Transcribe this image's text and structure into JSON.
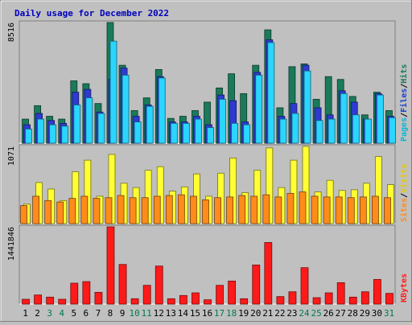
{
  "chart_data": {
    "type": "bar",
    "title": "Daily usage for December 2022",
    "categories": [
      "1",
      "2",
      "3",
      "4",
      "5",
      "6",
      "7",
      "8",
      "9",
      "10",
      "11",
      "12",
      "13",
      "14",
      "15",
      "16",
      "17",
      "18",
      "19",
      "20",
      "21",
      "22",
      "23",
      "24",
      "25",
      "26",
      "27",
      "28",
      "29",
      "30",
      "31"
    ],
    "weekend_days": [
      "3",
      "4",
      "10",
      "11",
      "17",
      "18",
      "24",
      "25",
      "31"
    ],
    "panels": [
      {
        "id": "hits",
        "y_max_label": "8516",
        "ylim": [
          0,
          8516
        ],
        "right_labels": [
          "Pages",
          "Files",
          "Hits"
        ],
        "series": [
          {
            "name": "Hits",
            "color": "#1a7a5a",
            "values": [
              1700,
              2650,
              1900,
              1700,
              4400,
              4200,
              2800,
              8516,
              5500,
              2300,
              3200,
              5200,
              1750,
              1900,
              2300,
              2900,
              3900,
              4900,
              3500,
              5500,
              8000,
              2500,
              5400,
              5600,
              3100,
              4700,
              4500,
              3300,
              2000,
              3600,
              2300
            ]
          },
          {
            "name": "Files",
            "color": "#2e3ad1",
            "values": [
              1300,
              2100,
              1600,
              1400,
              3600,
              3800,
              2200,
              4500,
              5300,
              1900,
              2700,
              4700,
              1500,
              1500,
              1900,
              1300,
              3400,
              3000,
              1500,
              5000,
              7300,
              1900,
              2800,
              5500,
              2500,
              2000,
              3700,
              2900,
              1700,
              3500,
              1900
            ]
          },
          {
            "name": "Pages",
            "color": "#2ad5ff",
            "values": [
              1000,
              1700,
              1300,
              1200,
              2700,
              3200,
              2100,
              7200,
              4800,
              1500,
              2600,
              4600,
              1400,
              1400,
              1700,
              1100,
              3100,
              1400,
              1300,
              4800,
              7100,
              1700,
              2100,
              5100,
              1600,
              1700,
              3500,
              2000,
              1700,
              3400,
              1800
            ]
          }
        ]
      },
      {
        "id": "visits",
        "y_max_label": "1071",
        "ylim": [
          0,
          1071
        ],
        "right_labels": [
          "Sites",
          "Visits"
        ],
        "series": [
          {
            "name": "Visits",
            "color": "#ffff33",
            "values": [
              270,
              570,
              480,
              320,
              720,
              880,
              380,
              960,
              560,
              500,
              740,
              790,
              450,
              510,
              690,
              380,
              700,
              910,
              430,
              740,
              1050,
              500,
              880,
              1071,
              440,
              600,
              460,
              470,
              560,
              930,
              540
            ]
          },
          {
            "name": "Sites",
            "color": "#ff8c1a",
            "values": [
              250,
              380,
              320,
              300,
              350,
              380,
              350,
              360,
              390,
              360,
              360,
              380,
              390,
              400,
              380,
              330,
              360,
              370,
              390,
              380,
              400,
              370,
              420,
              440,
              380,
              370,
              370,
              360,
              370,
              380,
              360
            ]
          }
        ]
      },
      {
        "id": "kbytes",
        "y_max_label": "1441846",
        "ylim": [
          0,
          1441846
        ],
        "right_labels": [
          "KBytes"
        ],
        "series": [
          {
            "name": "KBytes",
            "color": "#ff1a1a",
            "values": [
              90000,
              170000,
              130000,
              90000,
              390000,
              420000,
              220000,
              1441846,
              740000,
              100000,
              350000,
              710000,
              100000,
              160000,
              210000,
              80000,
              350000,
              430000,
              100000,
              730000,
              1150000,
              140000,
              230000,
              680000,
              120000,
              210000,
              400000,
              130000,
              230000,
              460000,
              200000
            ]
          }
        ]
      }
    ],
    "colors": {
      "background": "#c0c0c0",
      "plot_background": "#c0c0c0",
      "title": "#0000c0",
      "weekday_label": "#000000",
      "weekend_label": "#007a4a",
      "pages_label": "#00b8d8",
      "files_label": "#1a40d0",
      "hits_label": "#1a7a5a",
      "sites_label": "#ff8c1a",
      "visits_label": "#e6c800",
      "kbytes_label": "#ff1a1a"
    }
  }
}
